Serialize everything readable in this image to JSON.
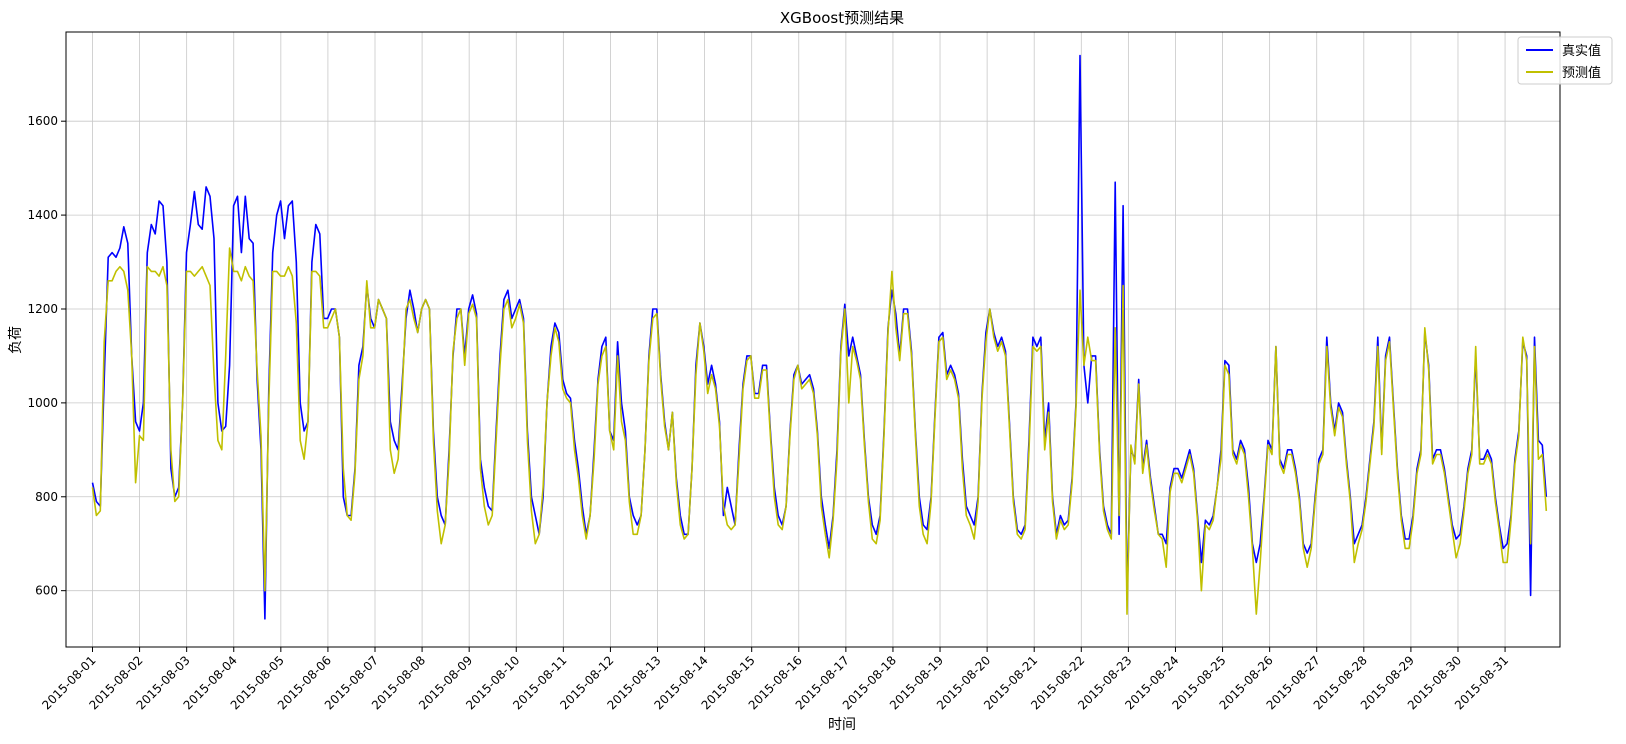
{
  "chart_data": {
    "type": "line",
    "title": "XGBoost预测结果",
    "xlabel": "时间",
    "ylabel": "负荷",
    "x_dates": [
      "2015-08-01",
      "2015-08-02",
      "2015-08-03",
      "2015-08-04",
      "2015-08-05",
      "2015-08-06",
      "2015-08-07",
      "2015-08-08",
      "2015-08-09",
      "2015-08-10",
      "2015-08-11",
      "2015-08-12",
      "2015-08-13",
      "2015-08-14",
      "2015-08-15",
      "2015-08-16",
      "2015-08-17",
      "2015-08-18",
      "2015-08-19",
      "2015-08-20",
      "2015-08-21",
      "2015-08-22",
      "2015-08-23",
      "2015-08-24",
      "2015-08-25",
      "2015-08-26",
      "2015-08-27",
      "2015-08-28",
      "2015-08-29",
      "2015-08-30",
      "2015-08-31"
    ],
    "y_ticks": [
      600,
      800,
      1000,
      1200,
      1400,
      1600
    ],
    "ylim": [
      480,
      1790
    ],
    "xlim": [
      "2015-07-31 10:30",
      "2015-09-01 04:00"
    ],
    "grid": true,
    "legend_position": "top-right",
    "series": [
      {
        "name": "真实值",
        "color": "#0000ff",
        "values": [
          [
            830,
            790,
            780,
            1050,
            1310,
            1320,
            1310,
            1330,
            1375,
            1340,
            1100,
            960,
            940,
            1000,
            1320,
            1380,
            1360,
            1430,
            1420,
            1300,
            860,
            800,
            820,
            1000,
            1320,
            1380,
            1450,
            1380,
            1370,
            1460,
            1440,
            1350,
            1000,
            940,
            950,
            1080,
            1420,
            1440,
            1320,
            1440,
            1350,
            1340,
            1050,
            900,
            540,
            1030,
            1320,
            1400,
            1430,
            1350,
            1420,
            1430,
            1300,
            1000,
            940,
            960,
            1300,
            1380,
            1360,
            1180,
            1180,
            1200,
            1200,
            1140,
            800,
            760,
            760,
            860,
            1080,
            1120,
            1250,
            1180,
            1160,
            1220,
            1200,
            1180,
            960,
            920,
            900,
            1040,
            1180,
            1240,
            1200,
            1150,
            1200,
            1220,
            1200,
            940,
            800,
            760,
            740,
            900,
            1100,
            1200,
            1200,
            1100,
            1200,
            1230,
            1190,
            880,
            820,
            780,
            770,
            940,
            1100,
            1220,
            1240,
            1180,
            1200,
            1220,
            1180,
            940,
            800,
            760,
            720,
            800,
            1000,
            1120,
            1170,
            1150,
            1050,
            1020,
            1010,
            920,
            860,
            780,
            720,
            760,
            900,
            1050,
            1120,
            1140,
            940,
            920,
            1130,
            1000,
            940,
            800,
            760,
            740,
            760,
            900,
            1100,
            1200,
            1200,
            1060,
            960,
            900,
            980,
            840,
            760,
            720,
            720,
            860,
            1080,
            1170,
            1120,
            1040,
            1080,
            1040,
            960,
            760,
            820,
            780,
            740,
            900,
            1040,
            1100,
            1100,
            1020,
            1020,
            1080,
            1080,
            940,
            820,
            760,
            740,
            780,
            940,
            1060,
            1080,
            1040,
            1050,
            1060,
            1030,
            940,
            800,
            740,
            690,
            760,
            900,
            1120,
            1210,
            1100,
            1140,
            1100,
            1060,
            920,
            800,
            740,
            720,
            760,
            940,
            1160,
            1240,
            1190,
            1100,
            1200,
            1200,
            1110,
            940,
            800,
            740,
            730,
            800,
            980,
            1140,
            1150,
            1060,
            1080,
            1060,
            1020,
            880,
            780,
            760,
            740,
            800,
            1020,
            1150,
            1200,
            1150,
            1120,
            1140,
            1110,
            960,
            800,
            730,
            720,
            740,
            920,
            1140,
            1120,
            1140,
            920,
            1000,
            800,
            720,
            760,
            740,
            750,
            840,
            1000,
            1740,
            1080,
            1000,
            1100,
            1100,
            900,
            780,
            740,
            720,
            1470,
            720,
            1420,
            580,
            900,
            880,
            1050,
            860,
            920,
            840,
            780,
            720,
            720,
            700,
            820,
            860,
            860,
            840,
            870,
            900,
            860,
            760,
            660,
            750,
            740,
            760,
            820,
            900,
            1090,
            1080,
            900,
            880,
            920,
            900,
            820,
            700,
            660,
            700,
            800,
            920,
            900,
            1120,
            880,
            860,
            900,
            900,
            860,
            800,
            700,
            680,
            700,
            800,
            880,
            900,
            1140,
            1000,
            940,
            1000,
            980,
            880,
            800,
            700,
            720,
            740,
            800,
            880,
            960,
            1140,
            900,
            1100,
            1140,
            1000,
            860,
            760,
            710,
            710,
            760,
            860,
            900,
            1150,
            1080,
            880,
            900,
            900,
            860,
            800,
            740,
            710,
            720,
            780,
            860,
            900,
            1100,
            880,
            880,
            900,
            880,
            800,
            740,
            690,
            700,
            760,
            880,
            940,
            1130,
            1100,
            590,
            1140,
            920,
            910,
            800
          ]
        ]
      },
      {
        "name": "预测值",
        "color": "#c0c000",
        "values": [
          [
            820,
            760,
            770,
            1130,
            1260,
            1260,
            1280,
            1290,
            1280,
            1240,
            1100,
            830,
            930,
            920,
            1290,
            1280,
            1280,
            1270,
            1290,
            1250,
            900,
            790,
            800,
            1000,
            1280,
            1280,
            1270,
            1280,
            1290,
            1270,
            1250,
            1060,
            920,
            900,
            1100,
            1330,
            1280,
            1280,
            1260,
            1290,
            1270,
            1260,
            1070,
            930,
            600,
            1000,
            1280,
            1280,
            1270,
            1270,
            1290,
            1270,
            1170,
            920,
            880,
            960,
            1280,
            1280,
            1270,
            1160,
            1160,
            1180,
            1200,
            1140,
            860,
            760,
            750,
            850,
            1050,
            1100,
            1260,
            1160,
            1160,
            1220,
            1200,
            1180,
            900,
            850,
            880,
            1020,
            1200,
            1220,
            1180,
            1150,
            1200,
            1220,
            1200,
            920,
            770,
            700,
            740,
            880,
            1110,
            1180,
            1200,
            1080,
            1190,
            1210,
            1180,
            860,
            780,
            740,
            760,
            920,
            1080,
            1200,
            1220,
            1160,
            1180,
            1210,
            1170,
            920,
            770,
            700,
            720,
            820,
            1000,
            1100,
            1160,
            1130,
            1030,
            1010,
            1000,
            900,
            840,
            760,
            710,
            760,
            880,
            1040,
            1100,
            1120,
            940,
            900,
            1100,
            960,
            920,
            790,
            720,
            720,
            760,
            900,
            1090,
            1180,
            1190,
            1050,
            950,
            900,
            980,
            830,
            740,
            710,
            720,
            860,
            1060,
            1170,
            1110,
            1020,
            1060,
            1030,
            950,
            780,
            740,
            730,
            740,
            880,
            1030,
            1090,
            1100,
            1010,
            1010,
            1070,
            1070,
            930,
            800,
            740,
            730,
            780,
            930,
            1050,
            1080,
            1030,
            1040,
            1050,
            1020,
            930,
            780,
            720,
            670,
            750,
            880,
            1110,
            1200,
            1000,
            1120,
            1090,
            1050,
            910,
            790,
            710,
            700,
            750,
            930,
            1150,
            1280,
            1160,
            1090,
            1190,
            1190,
            1100,
            930,
            780,
            720,
            700,
            790,
            970,
            1130,
            1140,
            1050,
            1070,
            1050,
            1010,
            860,
            760,
            740,
            710,
            790,
            1010,
            1130,
            1200,
            1140,
            1110,
            1130,
            1100,
            950,
            790,
            720,
            710,
            730,
            900,
            1120,
            1110,
            1120,
            900,
            980,
            790,
            710,
            750,
            730,
            740,
            830,
            990,
            1240,
            1080,
            1140,
            1090,
            1090,
            890,
            770,
            730,
            710,
            1160,
            760,
            1250,
            550,
            910,
            870,
            1040,
            850,
            910,
            830,
            770,
            720,
            710,
            650,
            810,
            850,
            850,
            830,
            860,
            890,
            850,
            750,
            600,
            740,
            730,
            750,
            820,
            880,
            1080,
            1060,
            890,
            870,
            910,
            890,
            800,
            690,
            550,
            660,
            790,
            910,
            890,
            1120,
            870,
            850,
            890,
            890,
            850,
            790,
            690,
            650,
            690,
            790,
            870,
            890,
            1120,
            990,
            930,
            990,
            970,
            870,
            790,
            660,
            700,
            730,
            790,
            870,
            950,
            1120,
            890,
            1090,
            1130,
            990,
            850,
            750,
            690,
            690,
            750,
            850,
            890,
            1160,
            1070,
            870,
            890,
            890,
            850,
            790,
            730,
            670,
            700,
            770,
            850,
            890,
            1120,
            870,
            870,
            890,
            870,
            790,
            730,
            660,
            660,
            750,
            870,
            930,
            1140,
            1090,
            700,
            1120,
            880,
            890,
            770
          ]
        ]
      }
    ]
  }
}
